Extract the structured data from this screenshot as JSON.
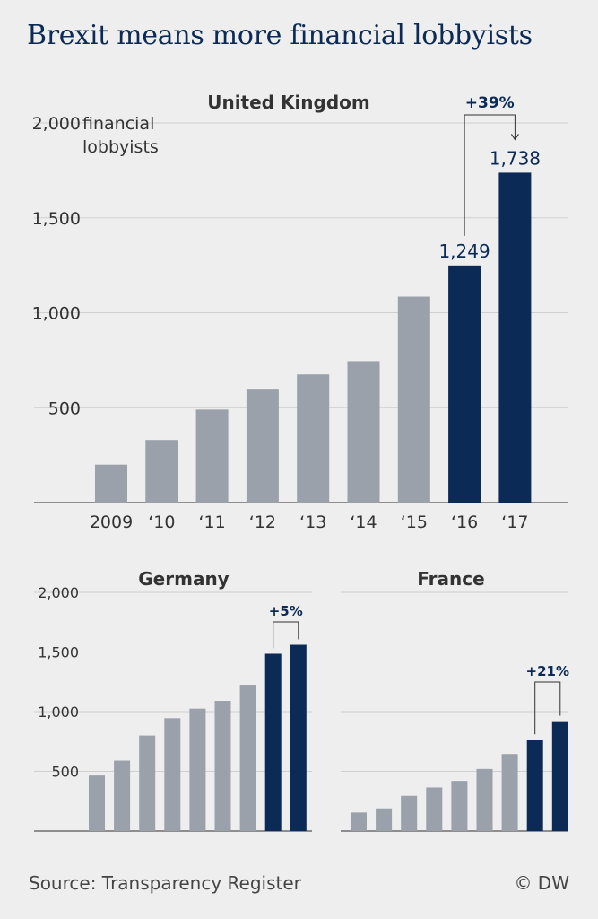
{
  "title": "Brexit means more financial lobbyists",
  "source": "Source: Transparency Register",
  "credit": "© DW",
  "chart_data": [
    {
      "type": "bar",
      "title": "United Kingdom",
      "unit_label": "financial lobbyists",
      "ylim": [
        0,
        2000
      ],
      "yticks": [
        "500",
        "1,000",
        "1,500",
        "2,000"
      ],
      "categories": [
        "2009",
        "‘10",
        "‘11",
        "‘12",
        "‘13",
        "‘14",
        "‘15",
        "‘16",
        "‘17"
      ],
      "values": [
        200,
        330,
        490,
        595,
        675,
        745,
        1085,
        1249,
        1738
      ],
      "value_labels": {
        "7": "1,249",
        "8": "1,738"
      },
      "highlight": [
        7,
        8
      ],
      "change": {
        "label": "+39%",
        "from": 7,
        "to": 8
      }
    },
    {
      "type": "bar",
      "title": "Germany",
      "ylim": [
        0,
        2000
      ],
      "yticks": [
        "500",
        "1,000",
        "1,500",
        "2,000"
      ],
      "values": [
        465,
        590,
        800,
        945,
        1025,
        1090,
        1225,
        1485,
        1560
      ],
      "highlight": [
        7,
        8
      ],
      "change": {
        "label": "+5%",
        "from": 7,
        "to": 8
      }
    },
    {
      "type": "bar",
      "title": "France",
      "ylim": [
        0,
        2000
      ],
      "values": [
        155,
        190,
        295,
        365,
        420,
        520,
        645,
        765,
        920
      ],
      "highlight": [
        7,
        8
      ],
      "change": {
        "label": "+21%",
        "from": 7,
        "to": 8
      }
    }
  ],
  "colors": {
    "bar": "#9aa1aa",
    "highlight": "#0b2a55",
    "grid": "#cfcfcf",
    "axis": "#555555",
    "text": "#333333"
  }
}
